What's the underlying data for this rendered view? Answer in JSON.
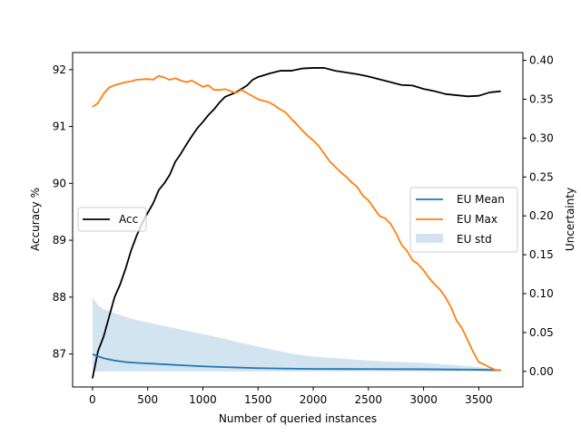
{
  "chart_data": {
    "type": "line",
    "xlabel": "Number of queried instances",
    "ylabel_left": "Accuracy %",
    "ylabel_right": "Uncertainty",
    "xlim": [
      -180,
      3900
    ],
    "ylim_left": [
      86.42,
      92.3
    ],
    "ylim_right": [
      -0.02,
      0.41
    ],
    "x_ticks": [
      0,
      500,
      1000,
      1500,
      2000,
      2500,
      3000,
      3500
    ],
    "y_ticks_left": [
      87,
      88,
      89,
      90,
      91,
      92
    ],
    "y_ticks_right": [
      "0.00",
      "0.05",
      "0.10",
      "0.15",
      "0.20",
      "0.25",
      "0.30",
      "0.35",
      "0.40"
    ],
    "grid": false,
    "legend_left": {
      "placement": "center-left",
      "entries": [
        "Acc"
      ]
    },
    "legend_right": {
      "placement": "center-right",
      "entries": [
        "EU Mean",
        "EU Max",
        "EU std"
      ]
    },
    "series": [
      {
        "name": "Acc",
        "axis": "left",
        "color": "#000000",
        "points": [
          [
            0,
            86.57
          ],
          [
            50,
            87.05
          ],
          [
            100,
            87.3
          ],
          [
            150,
            87.65
          ],
          [
            200,
            88.0
          ],
          [
            250,
            88.22
          ],
          [
            300,
            88.5
          ],
          [
            350,
            88.82
          ],
          [
            400,
            89.08
          ],
          [
            450,
            89.3
          ],
          [
            500,
            89.48
          ],
          [
            550,
            89.65
          ],
          [
            600,
            89.88
          ],
          [
            650,
            90.0
          ],
          [
            700,
            90.15
          ],
          [
            750,
            90.38
          ],
          [
            800,
            90.52
          ],
          [
            850,
            90.68
          ],
          [
            900,
            90.83
          ],
          [
            950,
            90.97
          ],
          [
            1000,
            91.08
          ],
          [
            1050,
            91.2
          ],
          [
            1100,
            91.3
          ],
          [
            1150,
            91.42
          ],
          [
            1200,
            91.52
          ],
          [
            1300,
            91.6
          ],
          [
            1400,
            91.72
          ],
          [
            1450,
            91.82
          ],
          [
            1500,
            91.87
          ],
          [
            1600,
            91.93
          ],
          [
            1700,
            91.98
          ],
          [
            1800,
            91.98
          ],
          [
            1900,
            92.02
          ],
          [
            2000,
            92.03
          ],
          [
            2100,
            92.03
          ],
          [
            2200,
            91.98
          ],
          [
            2300,
            91.95
          ],
          [
            2400,
            91.92
          ],
          [
            2500,
            91.88
          ],
          [
            2600,
            91.83
          ],
          [
            2700,
            91.78
          ],
          [
            2800,
            91.73
          ],
          [
            2900,
            91.72
          ],
          [
            3000,
            91.66
          ],
          [
            3100,
            91.62
          ],
          [
            3200,
            91.57
          ],
          [
            3300,
            91.55
          ],
          [
            3400,
            91.53
          ],
          [
            3500,
            91.54
          ],
          [
            3600,
            91.6
          ],
          [
            3700,
            91.62
          ]
        ]
      },
      {
        "name": "EU Mean",
        "axis": "right",
        "color": "#1f77b4",
        "points": [
          [
            0,
            0.022
          ],
          [
            100,
            0.017
          ],
          [
            200,
            0.014
          ],
          [
            300,
            0.012
          ],
          [
            400,
            0.011
          ],
          [
            600,
            0.0095
          ],
          [
            800,
            0.008
          ],
          [
            1000,
            0.0065
          ],
          [
            1200,
            0.0055
          ],
          [
            1500,
            0.0042
          ],
          [
            2000,
            0.0032
          ],
          [
            2500,
            0.003
          ],
          [
            3000,
            0.0028
          ],
          [
            3500,
            0.0022
          ],
          [
            3700,
            0.0015
          ]
        ]
      },
      {
        "name": "EU Max",
        "axis": "right",
        "color": "#ff7f0e",
        "points": [
          [
            0,
            0.34
          ],
          [
            50,
            0.345
          ],
          [
            100,
            0.357
          ],
          [
            150,
            0.365
          ],
          [
            200,
            0.368
          ],
          [
            250,
            0.37
          ],
          [
            300,
            0.372
          ],
          [
            350,
            0.373
          ],
          [
            400,
            0.375
          ],
          [
            500,
            0.376
          ],
          [
            550,
            0.375
          ],
          [
            600,
            0.38
          ],
          [
            650,
            0.378
          ],
          [
            700,
            0.375
          ],
          [
            750,
            0.377
          ],
          [
            800,
            0.374
          ],
          [
            850,
            0.372
          ],
          [
            900,
            0.374
          ],
          [
            950,
            0.37
          ],
          [
            1000,
            0.366
          ],
          [
            1050,
            0.368
          ],
          [
            1100,
            0.362
          ],
          [
            1150,
            0.362
          ],
          [
            1200,
            0.363
          ],
          [
            1300,
            0.358
          ],
          [
            1350,
            0.362
          ],
          [
            1400,
            0.358
          ],
          [
            1500,
            0.35
          ],
          [
            1550,
            0.348
          ],
          [
            1600,
            0.346
          ],
          [
            1650,
            0.342
          ],
          [
            1700,
            0.337
          ],
          [
            1750,
            0.333
          ],
          [
            1800,
            0.325
          ],
          [
            1850,
            0.318
          ],
          [
            1900,
            0.31
          ],
          [
            1950,
            0.303
          ],
          [
            2000,
            0.297
          ],
          [
            2050,
            0.29
          ],
          [
            2100,
            0.28
          ],
          [
            2150,
            0.27
          ],
          [
            2200,
            0.263
          ],
          [
            2250,
            0.256
          ],
          [
            2300,
            0.25
          ],
          [
            2350,
            0.243
          ],
          [
            2400,
            0.237
          ],
          [
            2450,
            0.226
          ],
          [
            2500,
            0.22
          ],
          [
            2550,
            0.21
          ],
          [
            2600,
            0.2
          ],
          [
            2650,
            0.197
          ],
          [
            2700,
            0.19
          ],
          [
            2750,
            0.178
          ],
          [
            2800,
            0.163
          ],
          [
            2850,
            0.155
          ],
          [
            2900,
            0.143
          ],
          [
            2950,
            0.138
          ],
          [
            3000,
            0.13
          ],
          [
            3050,
            0.12
          ],
          [
            3100,
            0.112
          ],
          [
            3150,
            0.105
          ],
          [
            3200,
            0.095
          ],
          [
            3250,
            0.082
          ],
          [
            3300,
            0.065
          ],
          [
            3350,
            0.055
          ],
          [
            3400,
            0.04
          ],
          [
            3450,
            0.025
          ],
          [
            3500,
            0.012
          ],
          [
            3550,
            0.009
          ],
          [
            3600,
            0.005
          ],
          [
            3650,
            0.002
          ],
          [
            3700,
            0.001
          ]
        ]
      },
      {
        "name": "EU std",
        "axis": "right",
        "color": "#1f77b4",
        "kind": "area",
        "opacity": 0.2,
        "upper": [
          [
            0,
            0.095
          ],
          [
            50,
            0.085
          ],
          [
            100,
            0.08
          ],
          [
            200,
            0.075
          ],
          [
            300,
            0.07
          ],
          [
            400,
            0.066
          ],
          [
            500,
            0.063
          ],
          [
            600,
            0.06
          ],
          [
            700,
            0.057
          ],
          [
            800,
            0.054
          ],
          [
            900,
            0.051
          ],
          [
            1000,
            0.048
          ],
          [
            1100,
            0.045
          ],
          [
            1200,
            0.042
          ],
          [
            1300,
            0.038
          ],
          [
            1400,
            0.035
          ],
          [
            1500,
            0.032
          ],
          [
            1600,
            0.029
          ],
          [
            1700,
            0.026
          ],
          [
            1800,
            0.023
          ],
          [
            1900,
            0.021
          ],
          [
            2000,
            0.019
          ],
          [
            2200,
            0.017
          ],
          [
            2400,
            0.015
          ],
          [
            2600,
            0.013
          ],
          [
            2800,
            0.012
          ],
          [
            3000,
            0.011
          ],
          [
            3200,
            0.009
          ],
          [
            3400,
            0.007
          ],
          [
            3600,
            0.004
          ],
          [
            3700,
            0.002
          ]
        ],
        "lower": [
          [
            0,
            0.0
          ],
          [
            3700,
            0.0
          ]
        ]
      }
    ]
  }
}
